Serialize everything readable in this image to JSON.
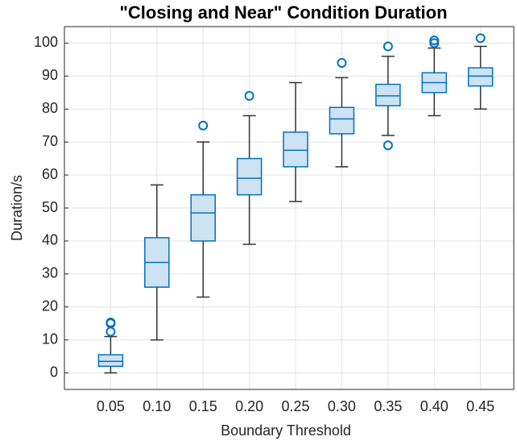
{
  "chart_data": {
    "type": "boxplot",
    "title": "\"Closing and Near\" Condition Duration",
    "x_label": "Boundary Threshold",
    "y_label": "Duration/s",
    "categories": [
      "0.05",
      "0.10",
      "0.15",
      "0.20",
      "0.25",
      "0.30",
      "0.35",
      "0.40",
      "0.45"
    ],
    "boxes": [
      {
        "min": 0,
        "q1": 2,
        "median": 3.5,
        "q3": 5.5,
        "max": 11,
        "outliers": [
          12.5,
          15,
          15.3
        ]
      },
      {
        "min": 10,
        "q1": 26,
        "median": 33.5,
        "q3": 41,
        "max": 57,
        "outliers": []
      },
      {
        "min": 23,
        "q1": 40,
        "median": 48.5,
        "q3": 54,
        "max": 70,
        "outliers": [
          75
        ]
      },
      {
        "min": 39,
        "q1": 54,
        "median": 59,
        "q3": 65,
        "max": 78,
        "outliers": [
          84
        ]
      },
      {
        "min": 52,
        "q1": 62.5,
        "median": 67.5,
        "q3": 73,
        "max": 88,
        "outliers": []
      },
      {
        "min": 62.5,
        "q1": 72.5,
        "median": 77,
        "q3": 80.5,
        "max": 89.5,
        "outliers": [
          94
        ]
      },
      {
        "min": 72,
        "q1": 81,
        "median": 84,
        "q3": 87.5,
        "max": 96,
        "outliers": [
          69,
          99
        ]
      },
      {
        "min": 78,
        "q1": 85,
        "median": 88,
        "q3": 91,
        "max": 98.5,
        "outliers": [
          100,
          100.8
        ]
      },
      {
        "min": 80,
        "q1": 87,
        "median": 90,
        "q3": 92.5,
        "max": 99,
        "outliers": [
          101.5
        ]
      }
    ],
    "color": "#0072bd",
    "fill": "#cde2f3",
    "whisker_color": "#333333",
    "ylim": [
      -5,
      105
    ],
    "yticks": [
      0,
      10,
      20,
      30,
      40,
      50,
      60,
      70,
      80,
      90,
      100
    ],
    "grid": true
  }
}
